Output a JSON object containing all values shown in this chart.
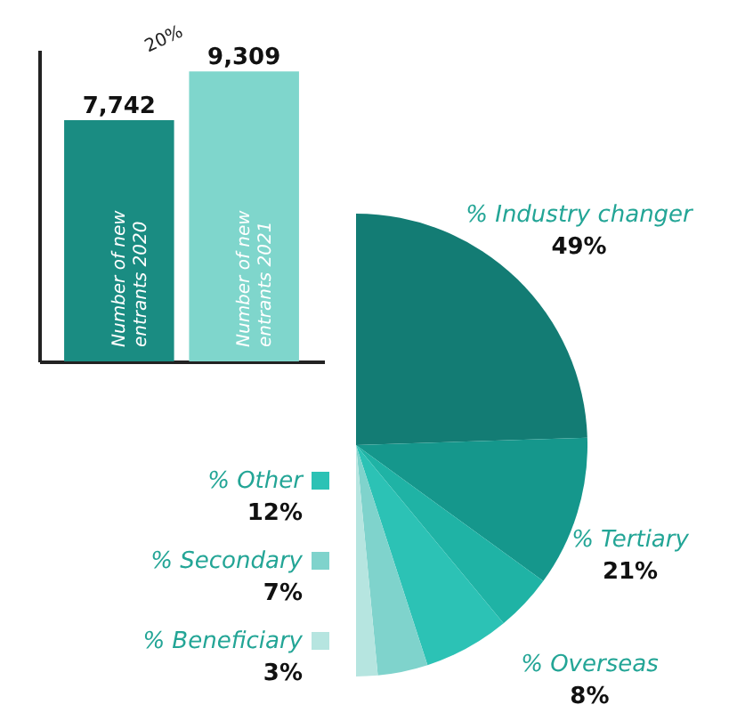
{
  "chart_data": [
    {
      "type": "bar",
      "categories": [
        "Number of new entrants 2020",
        "Number of new entrants 2021"
      ],
      "values": [
        7742,
        9309
      ],
      "colors": [
        "#1a8c82",
        "#7fd6cc"
      ],
      "value_labels": [
        "7,742",
        "9,309"
      ],
      "annotations": [
        "20%"
      ]
    },
    {
      "type": "pie",
      "categories": [
        "% Industry changer",
        "% Tertiary",
        "% Overseas",
        "% Other",
        "% Secondary",
        "% Beneficiary"
      ],
      "values": [
        49,
        21,
        8,
        12,
        7,
        3
      ],
      "colors": [
        "#137c74",
        "#15978c",
        "#1fb3a5",
        "#2cc2b5",
        "#7fd3cc",
        "#b6e5e0"
      ],
      "value_labels": [
        "49%",
        "21%",
        "8%",
        "12%",
        "7%",
        "3%"
      ],
      "legend": "left"
    }
  ]
}
